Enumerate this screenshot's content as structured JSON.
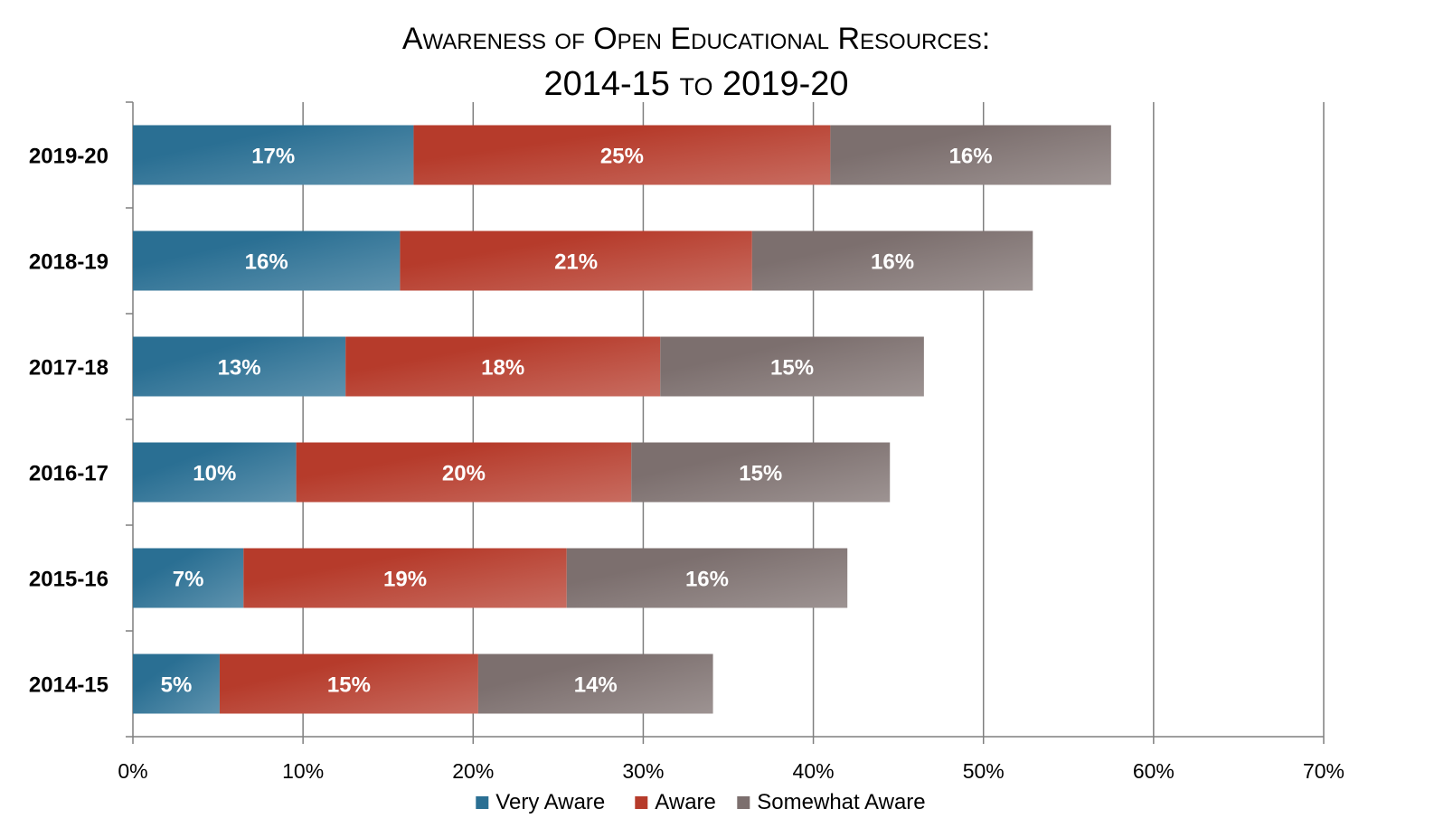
{
  "chart_data": {
    "type": "bar",
    "orientation": "horizontal",
    "stacked": true,
    "title": [
      "Awareness of Open Educational Resources:",
      "2014-15 to 2019-20"
    ],
    "categories": [
      "2019-20",
      "2018-19",
      "2017-18",
      "2016-17",
      "2015-16",
      "2014-15"
    ],
    "series": [
      {
        "name": "Very Aware",
        "color": "#2a6f93",
        "values": [
          16.5,
          15.7,
          12.5,
          9.6,
          6.5,
          5.1
        ],
        "labels": [
          "17%",
          "16%",
          "13%",
          "10%",
          "7%",
          "5%"
        ]
      },
      {
        "name": "Aware",
        "color": "#b63b2b",
        "values": [
          24.5,
          20.7,
          18.5,
          19.7,
          19.0,
          15.2
        ],
        "labels": [
          "25%",
          "21%",
          "18%",
          "20%",
          "19%",
          "15%"
        ]
      },
      {
        "name": "Somewhat Aware",
        "color": "#7c6f6e",
        "values": [
          16.5,
          16.5,
          15.5,
          15.2,
          16.5,
          13.8
        ],
        "labels": [
          "16%",
          "16%",
          "15%",
          "15%",
          "16%",
          "14%"
        ]
      }
    ],
    "xlim": [
      0,
      70
    ],
    "xticks": [
      "0%",
      "10%",
      "20%",
      "30%",
      "40%",
      "50%",
      "60%",
      "70%"
    ],
    "grid": "vertical",
    "legend": "bottom"
  }
}
